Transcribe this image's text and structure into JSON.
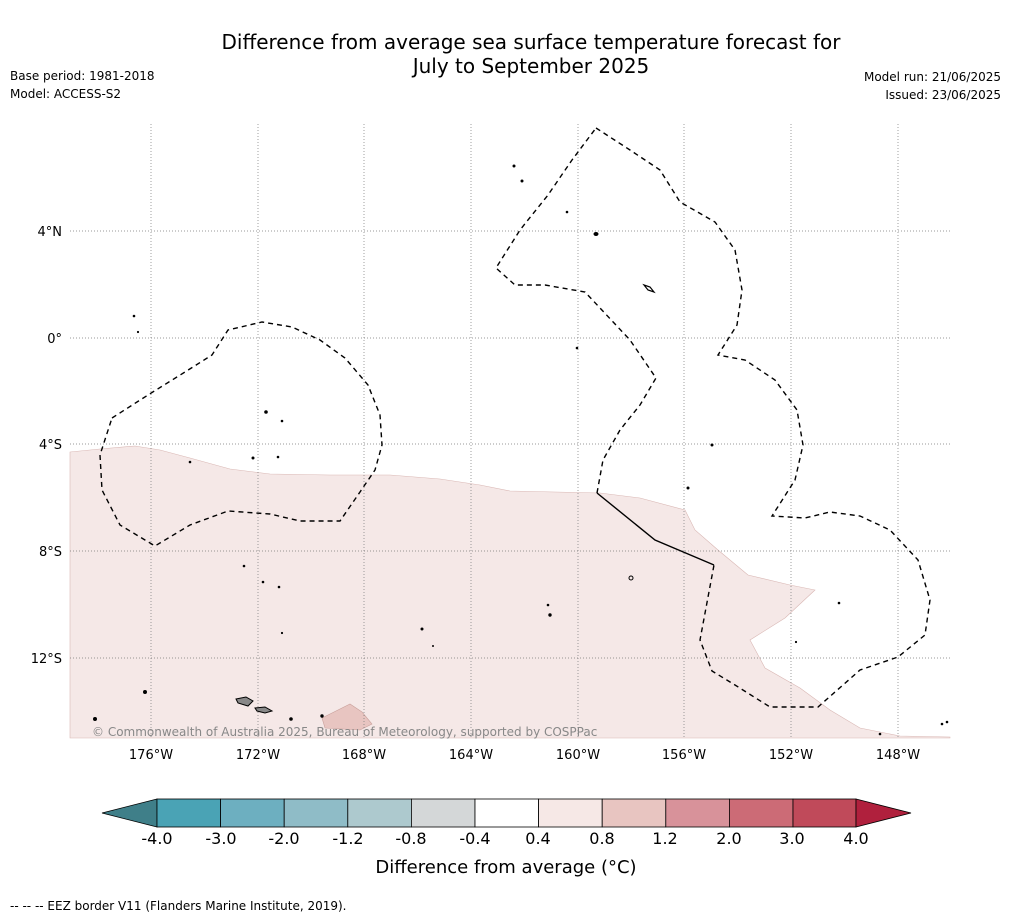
{
  "header": {
    "title_line1": "Difference from average sea surface temperature forecast for",
    "title_line2": "July to September 2025",
    "base_period": "Base period: 1981-2018",
    "model": "Model: ACCESS-S2",
    "model_run": "Model run: 21/06/2025",
    "issued": "Issued: 23/06/2025"
  },
  "map": {
    "lat_labels": [
      "4°N",
      "0°",
      "4°S",
      "8°S",
      "12°S"
    ],
    "lon_labels": [
      "176°W",
      "172°W",
      "168°W",
      "164°W",
      "160°W",
      "156°W",
      "152°W",
      "148°W"
    ],
    "copyright": "© Commonwealth of Australia 2025, Bureau of Meteorology, supported by COSPPac",
    "fill_colors": {
      "class_04_08": "#f5e8e7",
      "class_08_12": "#e8c5c1"
    }
  },
  "colorbar": {
    "title": "Difference from average (°C)",
    "tick_labels": [
      "-4.0",
      "-3.0",
      "-2.0",
      "-1.2",
      "-0.8",
      "-0.4",
      "0.4",
      "0.8",
      "1.2",
      "2.0",
      "3.0",
      "4.0"
    ],
    "colors": [
      "#3f7f89",
      "#4aa3b5",
      "#6dafc0",
      "#8fbcc7",
      "#adc9ce",
      "#d4d7d8",
      "#ffffff",
      "#f6e8e6",
      "#e8c5c1",
      "#d8929a",
      "#cc6b76",
      "#c04a5a",
      "#b0203d"
    ]
  },
  "footnote": "-- -- -- EEZ border V11 (Flanders Marine Institute, 2019)."
}
